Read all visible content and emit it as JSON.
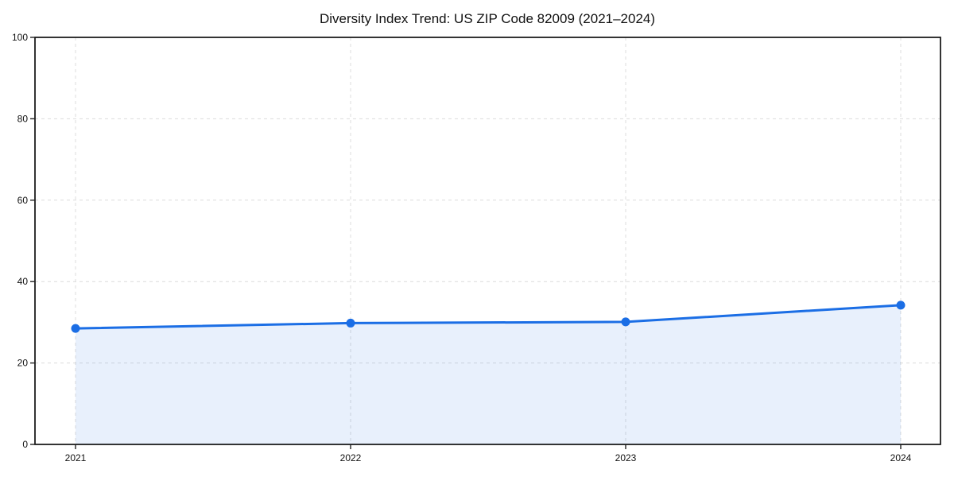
{
  "chart_data": {
    "type": "line",
    "title": "Diversity Index Trend: US ZIP Code 82009 (2021–2024)",
    "x": [
      "2021",
      "2022",
      "2023",
      "2024"
    ],
    "series": [
      {
        "name": "Diversity Index",
        "values": [
          28.5,
          29.8,
          30.1,
          34.2
        ]
      }
    ],
    "xlabel": "",
    "ylabel": "",
    "ylim": [
      0,
      100
    ],
    "yticks": [
      0,
      20,
      40,
      60,
      80,
      100
    ],
    "grid": true,
    "grid_style": "dashed",
    "legend_position": "none",
    "line_color": "#1b6ee5",
    "marker": "circle",
    "marker_color": "#1b6ee5",
    "area_fill": true,
    "area_opacity": 0.1,
    "background_color": "#ffffff"
  }
}
